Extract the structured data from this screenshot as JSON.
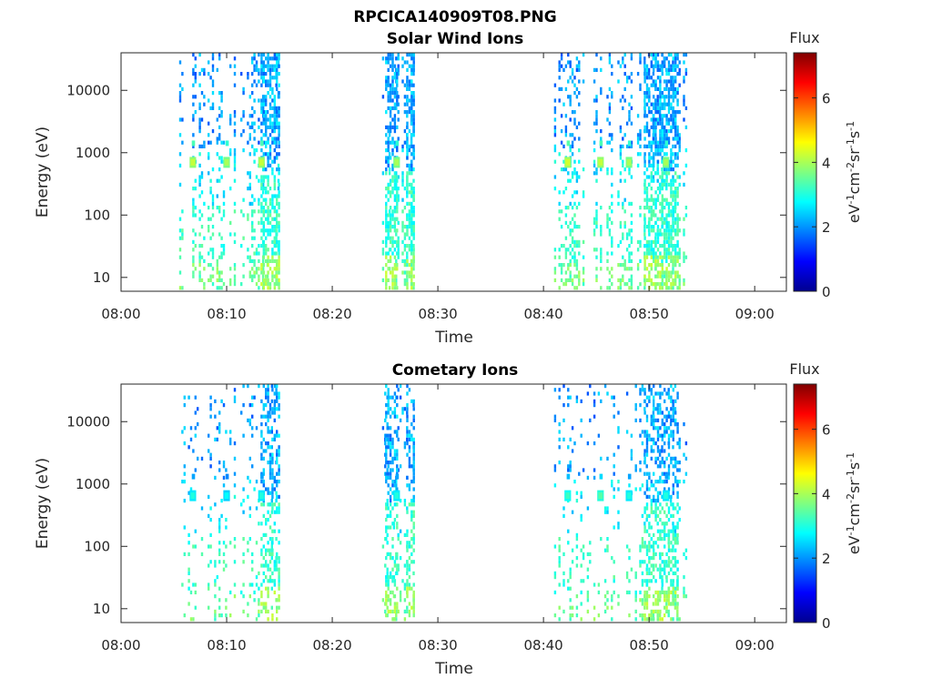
{
  "figure_title": "RPCICA140909T08.PNG",
  "colorbar": {
    "label": "Flux",
    "unit_prefix": "eV",
    "unit_mid": "cm",
    "unit_sr": "sr",
    "unit_s": "s",
    "unit_exp_neg1": "-1",
    "unit_exp_neg2": "-2",
    "range": [
      0,
      7.4
    ],
    "ticks": [
      "0",
      "2",
      "4",
      "6"
    ],
    "colormap": "jet"
  },
  "chart_data": [
    {
      "type": "heatmap",
      "title": "Solar Wind Ions",
      "xlabel": "Time",
      "ylabel": "Energy (eV)",
      "xlim": [
        "08:00",
        "09:03"
      ],
      "ylim": [
        6,
        40000
      ],
      "yscale": "log",
      "xticks": [
        "08:00",
        "08:10",
        "08:20",
        "08:30",
        "08:40",
        "08:50",
        "09:00"
      ],
      "yticks": [
        "10",
        "100",
        "1000",
        "10000"
      ],
      "active_intervals": [
        [
          "08:05.5",
          "08:15"
        ],
        [
          "08:24.5",
          "08:27.8"
        ],
        [
          "08:41",
          "08:53.5"
        ]
      ],
      "peaks": [
        {
          "time": "08:06.8",
          "energy": 700,
          "flux": 4.2
        },
        {
          "time": "08:10.0",
          "energy": 700,
          "flux": 4.0
        },
        {
          "time": "08:13.3",
          "energy": 700,
          "flux": 4.2
        },
        {
          "time": "08:26.1",
          "energy": 700,
          "flux": 4.0
        },
        {
          "time": "08:42.3",
          "energy": 700,
          "flux": 4.3
        },
        {
          "time": "08:45.4",
          "energy": 700,
          "flux": 4.2
        },
        {
          "time": "08:48.1",
          "energy": 700,
          "flux": 4.0
        },
        {
          "time": "08:51.6",
          "energy": 700,
          "flux": 4.0
        }
      ]
    },
    {
      "type": "heatmap",
      "title": "Cometary Ions",
      "xlabel": "Time",
      "ylabel": "Energy (eV)",
      "xlim": [
        "08:00",
        "09:03"
      ],
      "ylim": [
        6,
        40000
      ],
      "yscale": "log",
      "xticks": [
        "08:00",
        "08:10",
        "08:20",
        "08:30",
        "08:40",
        "08:50",
        "09:00"
      ],
      "yticks": [
        "10",
        "100",
        "1000",
        "10000"
      ],
      "active_intervals": [
        [
          "08:05.5",
          "08:15"
        ],
        [
          "08:24.5",
          "08:27.8"
        ],
        [
          "08:41",
          "08:53.5"
        ]
      ],
      "peaks": [
        {
          "time": "08:06.8",
          "energy": 650,
          "flux": 3.0
        },
        {
          "time": "08:10.0",
          "energy": 650,
          "flux": 2.8
        },
        {
          "time": "08:13.3",
          "energy": 650,
          "flux": 3.0
        },
        {
          "time": "08:26.1",
          "energy": 650,
          "flux": 3.0
        },
        {
          "time": "08:42.3",
          "energy": 650,
          "flux": 3.2
        },
        {
          "time": "08:45.4",
          "energy": 650,
          "flux": 3.4
        },
        {
          "time": "08:48.1",
          "energy": 650,
          "flux": 3.0
        },
        {
          "time": "08:51.6",
          "energy": 650,
          "flux": 3.0
        }
      ]
    }
  ]
}
